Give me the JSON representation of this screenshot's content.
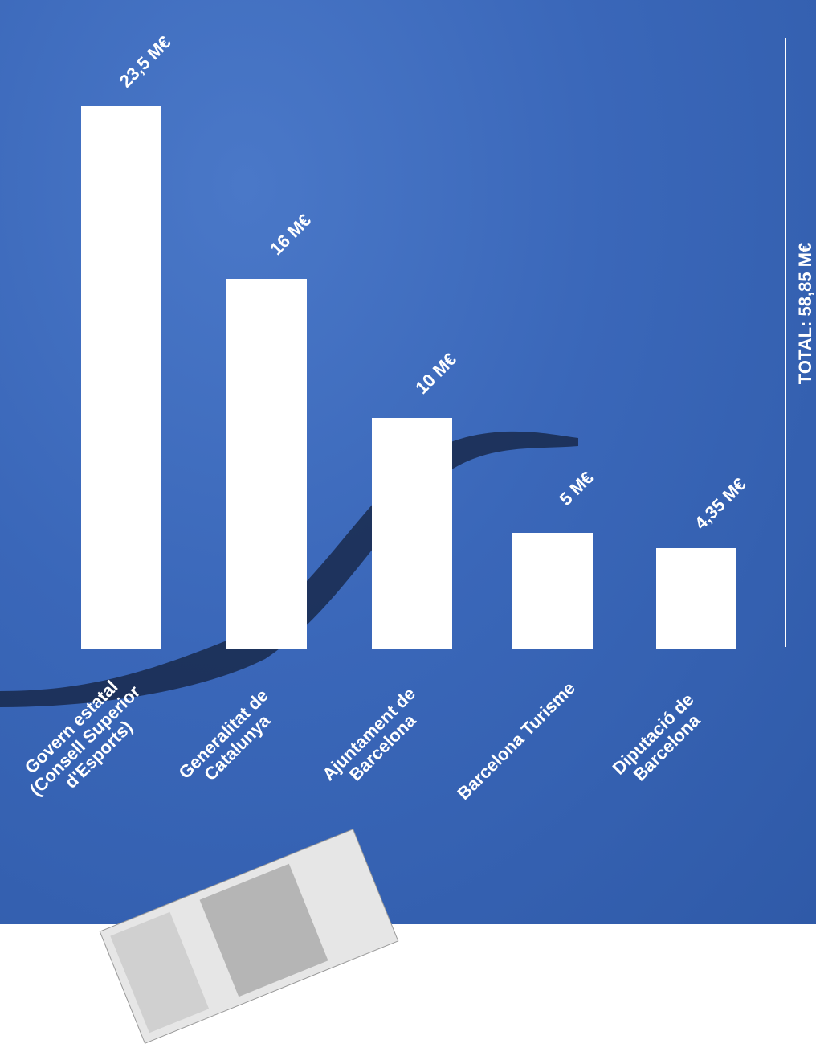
{
  "chart_data": {
    "type": "bar",
    "categories": [
      "Govern estatal\n(Consell Superior\nd'Esports)",
      "Generalitat de\nCatalunya",
      "Ajuntament de\nBarcelona",
      "Barcelona Turisme",
      "Diputació de\nBarcelona"
    ],
    "values": [
      23.5,
      16,
      10,
      5,
      4.35
    ],
    "value_labels": [
      "23,5 M€",
      "16 M€",
      "10 M€",
      "5 M€",
      "4,35 M€"
    ],
    "color": "#ffffff",
    "annotation": "TOTAL: 58,85 M€"
  }
}
